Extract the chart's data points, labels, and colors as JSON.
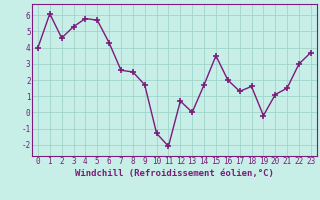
{
  "x": [
    0,
    1,
    2,
    3,
    4,
    5,
    6,
    7,
    8,
    9,
    10,
    11,
    12,
    13,
    14,
    15,
    16,
    17,
    18,
    19,
    20,
    21,
    22,
    23
  ],
  "y": [
    4.0,
    6.1,
    4.6,
    5.3,
    5.8,
    5.7,
    4.3,
    2.6,
    2.5,
    1.7,
    -1.3,
    -2.1,
    0.7,
    0.0,
    1.7,
    3.5,
    2.0,
    1.3,
    1.6,
    -0.2,
    1.1,
    1.5,
    3.0,
    3.7
  ],
  "line_color": "#7B1B7B",
  "marker": "+",
  "marker_size": 4,
  "background_color": "#c8eee8",
  "grid_color": "#a0d4c8",
  "xlabel": "Windchill (Refroidissement éolien,°C)",
  "xlabel_fontsize": 6.5,
  "ylim": [
    -2.7,
    6.7
  ],
  "yticks": [
    -2,
    -1,
    0,
    1,
    2,
    3,
    4,
    5,
    6
  ],
  "xticks": [
    0,
    1,
    2,
    3,
    4,
    5,
    6,
    7,
    8,
    9,
    10,
    11,
    12,
    13,
    14,
    15,
    16,
    17,
    18,
    19,
    20,
    21,
    22,
    23
  ],
  "tick_fontsize": 5.5,
  "line_width": 1.0
}
